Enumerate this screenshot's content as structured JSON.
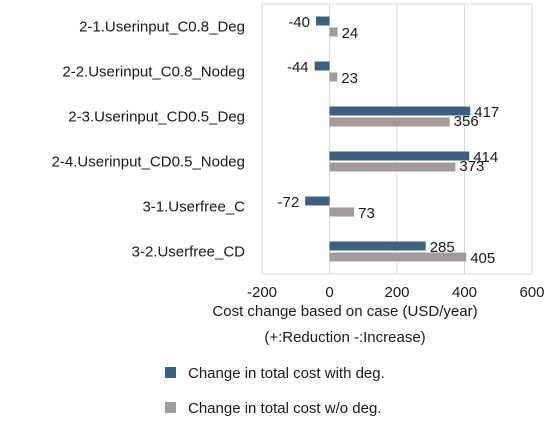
{
  "chart_data": {
    "type": "bar",
    "orientation": "horizontal",
    "categories": [
      "2-1.Userinput_C0.8_Deg",
      "2-2.Userinput_C0.8_Nodeg",
      "2-3.Userinput_CD0.5_Deg",
      "2-4.Userinput_CD0.5_Nodeg",
      "3-1.Userfree_C",
      "3-2.Userfree_CD"
    ],
    "series": [
      {
        "name": "Change in total cost with deg.",
        "color": "#3d5f80",
        "values": [
          -40,
          -44,
          417,
          414,
          -72,
          285
        ]
      },
      {
        "name": "Change in total cost w/o deg.",
        "color": "#a39b9b",
        "values": [
          24,
          23,
          356,
          373,
          73,
          405
        ]
      }
    ],
    "xlim": [
      -200,
      600
    ],
    "xticks": [
      -200,
      0,
      200,
      400,
      600
    ],
    "xlabel": [
      "Cost change based on case  (USD/year)",
      "(+:Reduction -:Increase)"
    ],
    "grid": "vertical",
    "legend_position": "bottom"
  }
}
